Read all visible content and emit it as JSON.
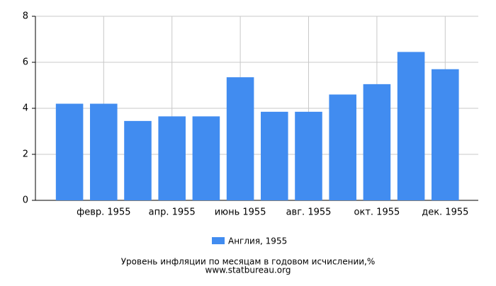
{
  "chart_data": {
    "type": "bar",
    "title": "Уровень инфляции по месяцам в годовом исчислении,%",
    "source": "www.statbureau.org",
    "categories": [
      null,
      "февр. 1955",
      null,
      "апр. 1955",
      null,
      "июнь 1955",
      null,
      "авг. 1955",
      null,
      "окт. 1955",
      null,
      "дек. 1955"
    ],
    "series": [
      {
        "name": "Англия, 1955",
        "color": "#418cf0",
        "values": [
          4.2,
          4.2,
          3.45,
          3.65,
          3.65,
          5.35,
          3.85,
          3.85,
          4.6,
          5.05,
          6.45,
          5.7
        ]
      }
    ],
    "ylim": [
      0,
      8
    ],
    "yticks": [
      0,
      2,
      4,
      6,
      8
    ],
    "grid": true
  }
}
